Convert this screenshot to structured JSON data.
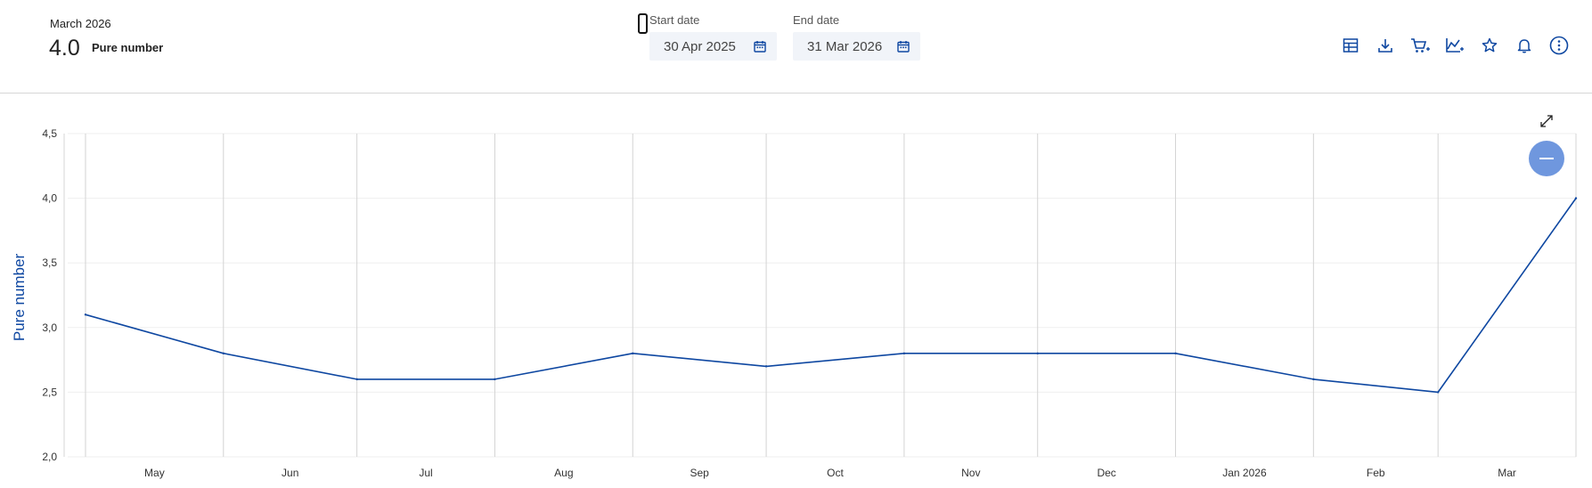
{
  "header": {
    "period": "March 2026",
    "value": "4.0",
    "unit": "Pure number"
  },
  "dates": {
    "start_label": "Start date",
    "start_value": "30 Apr 2025",
    "end_label": "End date",
    "end_value": "31 Mar 2026"
  },
  "toolbar": [
    "table-icon",
    "download-icon",
    "add-to-cart-icon",
    "add-chart-icon",
    "favourite-star-icon",
    "notification-bell-icon",
    "more-options-icon"
  ],
  "colors": {
    "accent": "#0e47a1",
    "line": "#0e47a1",
    "button": "#6f97de",
    "date_bg": "#f1f4f9"
  },
  "chart_data": {
    "type": "line",
    "ylabel": "Pure number",
    "ylim": [
      2.0,
      4.5
    ],
    "y_ticks": [
      "4,5",
      "4,0",
      "3,5",
      "3,0",
      "2,5",
      "2,0"
    ],
    "x_ticks": [
      "May",
      "Jun",
      "Jul",
      "Aug",
      "Sep",
      "Oct",
      "Nov",
      "Dec",
      "Jan 2026",
      "Feb",
      "Mar"
    ],
    "x": [
      "2025-04-30",
      "2025-05-31",
      "2025-06-30",
      "2025-07-31",
      "2025-08-31",
      "2025-09-30",
      "2025-10-31",
      "2025-11-30",
      "2025-12-31",
      "2026-01-31",
      "2026-02-28",
      "2026-03-31"
    ],
    "series": [
      {
        "values": [
          3.1,
          2.8,
          2.6,
          2.6,
          2.8,
          2.7,
          2.8,
          2.8,
          2.8,
          2.6,
          2.5,
          4.0
        ]
      }
    ],
    "grid": true
  }
}
